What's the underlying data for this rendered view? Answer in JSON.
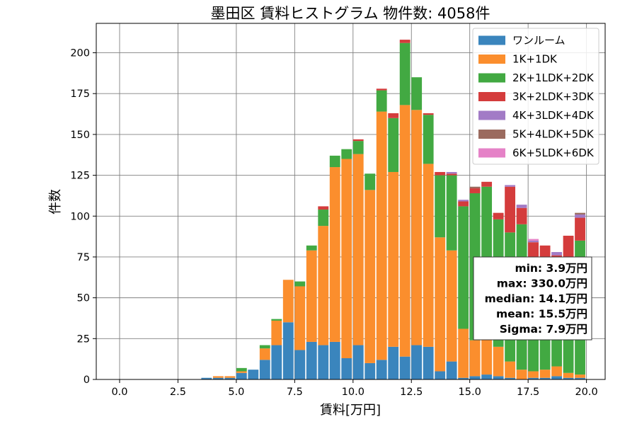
{
  "chart_data": {
    "type": "bar",
    "stacked": true,
    "title": "墨田区 賃料ヒストグラム 物件数: 4058件",
    "xlabel": "賃料[万円]",
    "ylabel": "件数",
    "xlim": [
      -1.0,
      20.8
    ],
    "ylim": [
      0,
      218
    ],
    "xticks": [
      0.0,
      2.5,
      5.0,
      7.5,
      10.0,
      12.5,
      15.0,
      17.5,
      20.0
    ],
    "xtick_labels": [
      "0.0",
      "2.5",
      "5.0",
      "7.5",
      "10.0",
      "12.5",
      "15.0",
      "17.5",
      "20.0"
    ],
    "yticks": [
      0,
      25,
      50,
      75,
      100,
      125,
      150,
      175,
      200
    ],
    "ytick_labels": [
      "0",
      "25",
      "50",
      "75",
      "100",
      "125",
      "150",
      "175",
      "200"
    ],
    "grid": true,
    "legend_position": "top-right",
    "bin_width": 0.5,
    "bin_starts": [
      3.5,
      4.0,
      4.5,
      5.0,
      5.5,
      6.0,
      6.5,
      7.0,
      7.5,
      8.0,
      8.5,
      9.0,
      9.5,
      10.0,
      10.5,
      11.0,
      11.5,
      12.0,
      12.5,
      13.0,
      13.5,
      14.0,
      14.5,
      15.0,
      15.5,
      16.0,
      16.5,
      17.0,
      17.5,
      18.0,
      18.5,
      19.0,
      19.5
    ],
    "series": [
      {
        "name": "ワンルーム",
        "color": "#3a85bd",
        "values": [
          1,
          1,
          1,
          4,
          6,
          12,
          21,
          35,
          18,
          23,
          21,
          23,
          13,
          21,
          10,
          12,
          20,
          14,
          21,
          20,
          5,
          11,
          1,
          2,
          3,
          2,
          1,
          0,
          1,
          1,
          2,
          1,
          1
        ]
      },
      {
        "name": "1K+1DK",
        "color": "#fb8e2d",
        "values": [
          0,
          1,
          1,
          1,
          0,
          7,
          15,
          26,
          39,
          56,
          73,
          107,
          122,
          117,
          106,
          152,
          107,
          154,
          144,
          112,
          82,
          68,
          30,
          22,
          22,
          18,
          10,
          6,
          4,
          5,
          6,
          3,
          2
        ]
      },
      {
        "name": "2K+1LDK+2DK",
        "color": "#42a942",
        "values": [
          0,
          0,
          0,
          2,
          0,
          2,
          1,
          0,
          3,
          3,
          10,
          7,
          6,
          8,
          10,
          13,
          33,
          38,
          20,
          30,
          38,
          46,
          75,
          90,
          93,
          78,
          79,
          89,
          62,
          60,
          60,
          70,
          82
        ]
      },
      {
        "name": "3K+2LDK+3DK",
        "color": "#d43c3c",
        "values": [
          0,
          0,
          0,
          0,
          0,
          0,
          0,
          0,
          0,
          0,
          2,
          0,
          0,
          1,
          0,
          1,
          3,
          2,
          0,
          1,
          2,
          1,
          3,
          3,
          3,
          4,
          28,
          10,
          17,
          16,
          8,
          14,
          14
        ]
      },
      {
        "name": "4K+3LDK+4DK",
        "color": "#a27bc6",
        "values": [
          0,
          0,
          0,
          0,
          0,
          0,
          0,
          0,
          0,
          0,
          0,
          0,
          0,
          0,
          0,
          0,
          0,
          0,
          0,
          0,
          0,
          1,
          1,
          0,
          0,
          0,
          1,
          2,
          1,
          0,
          2,
          0,
          2
        ]
      },
      {
        "name": "5K+4LDK+5DK",
        "color": "#9b6b5f",
        "values": [
          0,
          0,
          0,
          0,
          0,
          0,
          0,
          0,
          0,
          0,
          0,
          0,
          0,
          0,
          0,
          0,
          0,
          0,
          0,
          0,
          0,
          0,
          0,
          1,
          0,
          0,
          0,
          0,
          0,
          0,
          0,
          0,
          1
        ]
      },
      {
        "name": "6K+5LDK+6DK",
        "color": "#e582c7",
        "values": [
          0,
          0,
          0,
          0,
          0,
          0,
          0,
          0,
          0,
          0,
          0,
          0,
          0,
          0,
          0,
          0,
          0,
          0,
          0,
          0,
          0,
          0,
          0,
          0,
          0,
          0,
          0,
          0,
          1,
          0,
          0,
          0,
          0
        ]
      }
    ],
    "stats_box": {
      "lines": [
        "min: 3.9万円",
        "max: 330.0万円",
        "median: 14.1万円",
        "mean: 15.5万円",
        "Sigma: 7.9万円"
      ]
    }
  }
}
